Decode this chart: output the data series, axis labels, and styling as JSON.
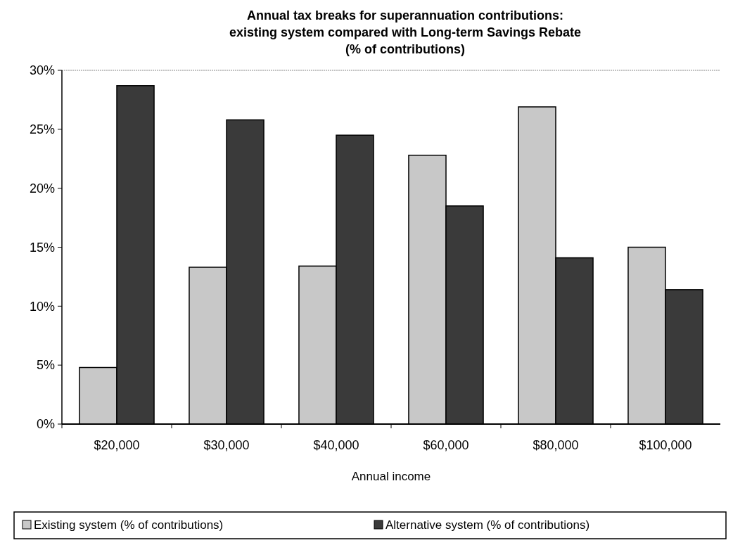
{
  "chart_data": {
    "type": "bar",
    "title": "Annual tax breaks for superannuation contributions:\nexisting system compared with Long-term Savings Rebate\n(% of contributions)",
    "xlabel": "Annual income",
    "categories": [
      "$20,000",
      "$30,000",
      "$40,000",
      "$60,000",
      "$80,000",
      "$100,000"
    ],
    "series": [
      {
        "name": "Existing system  (% of contributions)",
        "color": "#c8c8c8",
        "values": [
          4.8,
          13.3,
          13.4,
          22.8,
          26.9,
          15.0
        ]
      },
      {
        "name": "Alternative system  (% of contributions)",
        "color": "#3a3a3a",
        "values": [
          28.7,
          25.8,
          24.5,
          18.5,
          14.1,
          11.4
        ]
      }
    ],
    "ylim": [
      0,
      30
    ],
    "yticks": [
      {
        "value": 0,
        "label": "0%"
      },
      {
        "value": 5,
        "label": "5%"
      },
      {
        "value": 10,
        "label": "10%"
      },
      {
        "value": 15,
        "label": "15%"
      },
      {
        "value": 20,
        "label": "20%"
      },
      {
        "value": 25,
        "label": "25%"
      },
      {
        "value": 30,
        "label": "30%"
      }
    ],
    "grid": false,
    "legend": "bottom"
  }
}
